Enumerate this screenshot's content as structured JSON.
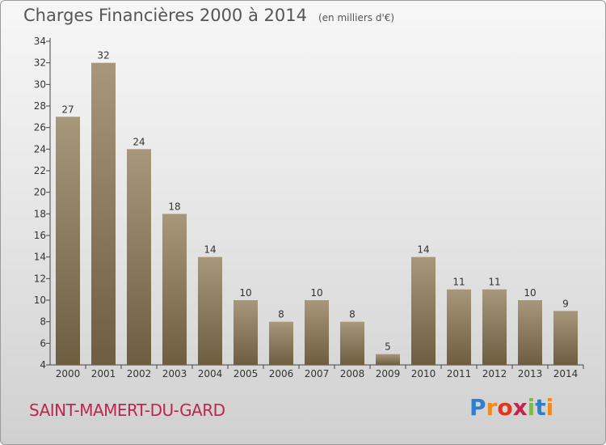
{
  "title": "Charges Financières 2000 à 2014",
  "subtitle": "(en milliers d'€)",
  "commune": "SAINT-MAMERT-DU-GARD",
  "logo": {
    "letters": [
      "P",
      "r",
      "o",
      "x",
      "i",
      "t",
      "i"
    ],
    "colors": [
      "#2f7fd1",
      "#f08a1c",
      "#e2351f",
      "#c0254f",
      "#7bbf3a",
      "#2f7fd1",
      "#f08a1c"
    ]
  },
  "colors": {
    "bar_top": "#a8977a",
    "bar_bottom": "#6e5d40",
    "axis": "#444444",
    "brand": "#c0254f"
  },
  "chart_data": {
    "type": "bar",
    "categories": [
      "2000",
      "2001",
      "2002",
      "2003",
      "2004",
      "2005",
      "2006",
      "2007",
      "2008",
      "2009",
      "2010",
      "2011",
      "2012",
      "2013",
      "2014"
    ],
    "values": [
      27,
      32,
      24,
      18,
      14,
      10,
      8,
      10,
      8,
      5,
      14,
      11,
      11,
      10,
      9
    ],
    "title": "Charges Financières 2000 à 2014",
    "xlabel": "",
    "ylabel": "",
    "ylim": [
      4,
      34
    ],
    "yticks": [
      4,
      6,
      8,
      10,
      12,
      14,
      16,
      18,
      20,
      22,
      24,
      26,
      28,
      30,
      32,
      34
    ],
    "grid": false,
    "legend": "none"
  }
}
